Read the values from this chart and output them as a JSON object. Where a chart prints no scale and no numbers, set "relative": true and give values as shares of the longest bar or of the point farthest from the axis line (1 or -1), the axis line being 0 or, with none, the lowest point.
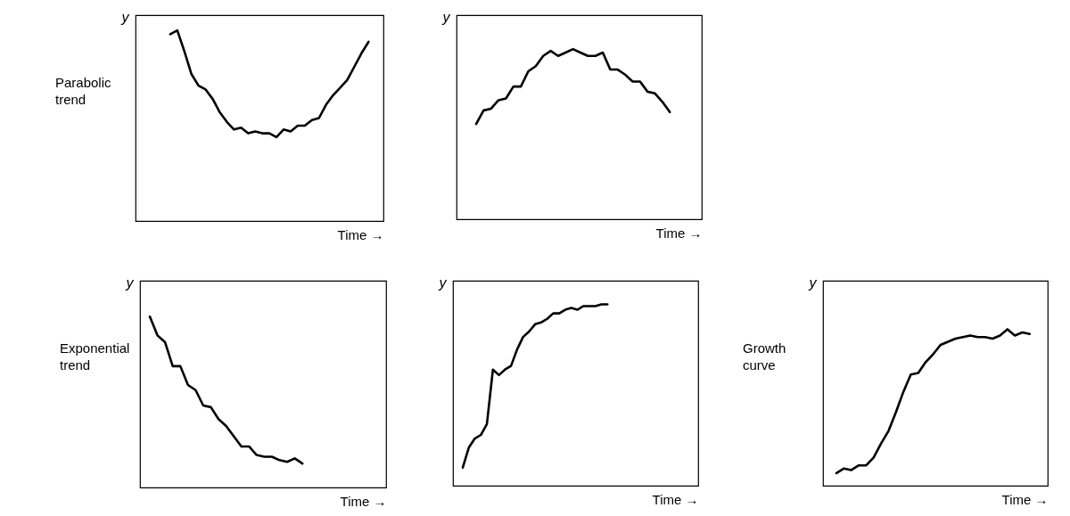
{
  "chart_data": [
    {
      "type": "line",
      "relative": true,
      "ylabel": "y",
      "xlabel": "Time →",
      "annotations": [
        "Parabolic trend"
      ],
      "categories": [
        null,
        null,
        null,
        null,
        null,
        null,
        null,
        null,
        null,
        null,
        null,
        null,
        null,
        null,
        null,
        null,
        null,
        null,
        null,
        null,
        null,
        null,
        null,
        null,
        null,
        null,
        null,
        null,
        null
      ],
      "series": [
        {
          "color": "#000000",
          "values": [
            0.98,
            1.0,
            0.89,
            0.77,
            0.71,
            0.69,
            0.64,
            0.57,
            0.52,
            0.48,
            0.49,
            0.46,
            0.47,
            0.46,
            0.46,
            0.44,
            0.48,
            0.47,
            0.5,
            0.5,
            0.53,
            0.54,
            0.61,
            0.66,
            0.7,
            0.74,
            0.81,
            0.88,
            0.94
          ]
        }
      ]
    },
    {
      "type": "line",
      "relative": true,
      "ylabel": "y",
      "xlabel": "Time →",
      "categories": [
        null,
        null,
        null,
        null,
        null,
        null,
        null,
        null,
        null,
        null,
        null,
        null,
        null,
        null,
        null,
        null,
        null,
        null,
        null,
        null,
        null,
        null,
        null,
        null,
        null,
        null,
        null
      ],
      "series": [
        {
          "color": "#000000",
          "values": [
            0.56,
            0.64,
            0.65,
            0.7,
            0.71,
            0.78,
            0.78,
            0.87,
            0.9,
            0.96,
            0.99,
            0.96,
            0.98,
            1.0,
            0.98,
            0.96,
            0.96,
            0.98,
            0.88,
            0.88,
            0.85,
            0.81,
            0.81,
            0.75,
            0.74,
            0.69,
            0.63
          ]
        }
      ]
    },
    {
      "type": "line",
      "relative": true,
      "ylabel": "y",
      "xlabel": "Time →",
      "annotations": [
        "Exponential trend"
      ],
      "categories": [
        null,
        null,
        null,
        null,
        null,
        null,
        null,
        null,
        null,
        null,
        null,
        null,
        null,
        null,
        null,
        null,
        null,
        null,
        null,
        null,
        null
      ],
      "series": [
        {
          "color": "#000000",
          "values": [
            1.0,
            0.89,
            0.85,
            0.71,
            0.71,
            0.6,
            0.57,
            0.48,
            0.47,
            0.4,
            0.36,
            0.3,
            0.24,
            0.24,
            0.19,
            0.18,
            0.18,
            0.16,
            0.15,
            0.17,
            0.14
          ]
        }
      ]
    },
    {
      "type": "line",
      "relative": true,
      "ylabel": "y",
      "xlabel": "Time →",
      "categories": [
        null,
        null,
        null,
        null,
        null,
        null,
        null,
        null,
        null,
        null,
        null,
        null,
        null,
        null,
        null,
        null,
        null,
        null,
        null,
        null,
        null,
        null,
        null,
        null,
        null
      ],
      "series": [
        {
          "color": "#000000",
          "values": [
            0.1,
            0.21,
            0.26,
            0.28,
            0.34,
            0.64,
            0.61,
            0.64,
            0.66,
            0.75,
            0.82,
            0.85,
            0.89,
            0.9,
            0.92,
            0.95,
            0.95,
            0.97,
            0.98,
            0.97,
            0.99,
            0.99,
            0.99,
            1.0,
            1.0
          ]
        }
      ]
    },
    {
      "type": "line",
      "relative": true,
      "ylabel": "y",
      "xlabel": "Time →",
      "annotations": [
        "Growth curve"
      ],
      "categories": [
        null,
        null,
        null,
        null,
        null,
        null,
        null,
        null,
        null,
        null,
        null,
        null,
        null,
        null,
        null,
        null,
        null,
        null,
        null,
        null,
        null,
        null,
        null,
        null,
        null,
        null,
        null
      ],
      "series": [
        {
          "color": "#000000",
          "values": [
            0.08,
            0.11,
            0.1,
            0.13,
            0.13,
            0.18,
            0.27,
            0.35,
            0.47,
            0.6,
            0.71,
            0.72,
            0.79,
            0.84,
            0.9,
            0.92,
            0.94,
            0.95,
            0.96,
            0.95,
            0.95,
            0.94,
            0.96,
            1.0,
            0.96,
            0.98,
            0.97
          ]
        }
      ]
    }
  ]
}
